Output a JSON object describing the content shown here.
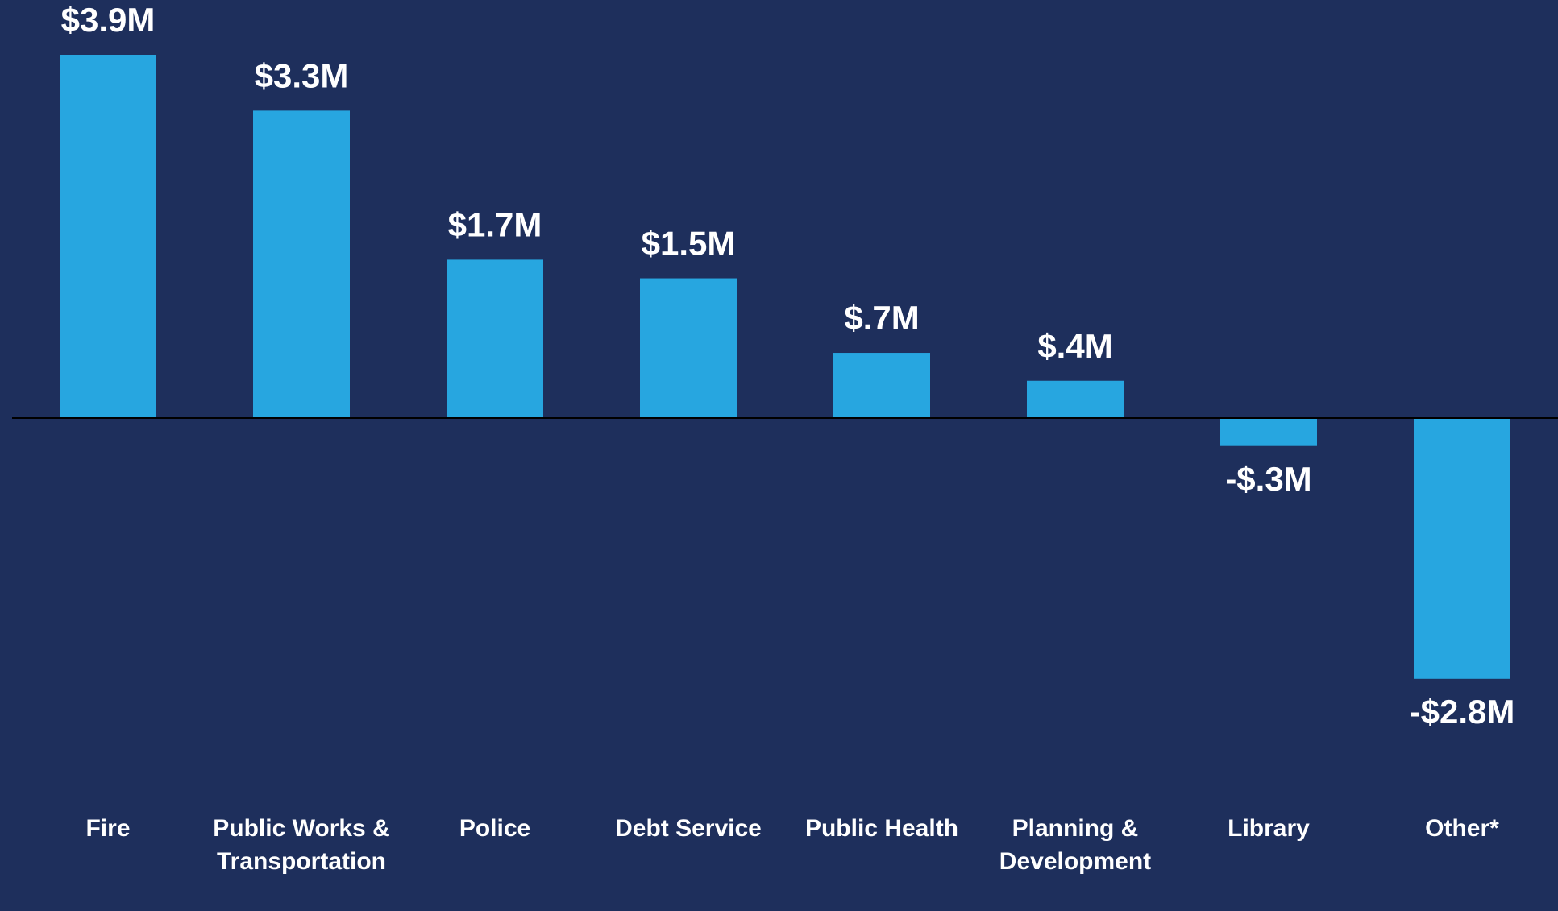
{
  "chart_data": {
    "type": "bar",
    "categories": [
      "Fire",
      "Public Works & Transportation",
      "Police",
      "Debt Service",
      "Public Health",
      "Planning & Development",
      "Library",
      "Other*"
    ],
    "values": [
      3.9,
      3.3,
      1.7,
      1.5,
      0.7,
      0.4,
      -0.3,
      -2.8
    ],
    "value_labels": [
      "$3.9M",
      "$3.3M",
      "$1.7M",
      "$1.5M",
      "$.7M",
      "$.4M",
      "-$.3M",
      "-$2.8M"
    ],
    "color": "#27a6e0"
  }
}
